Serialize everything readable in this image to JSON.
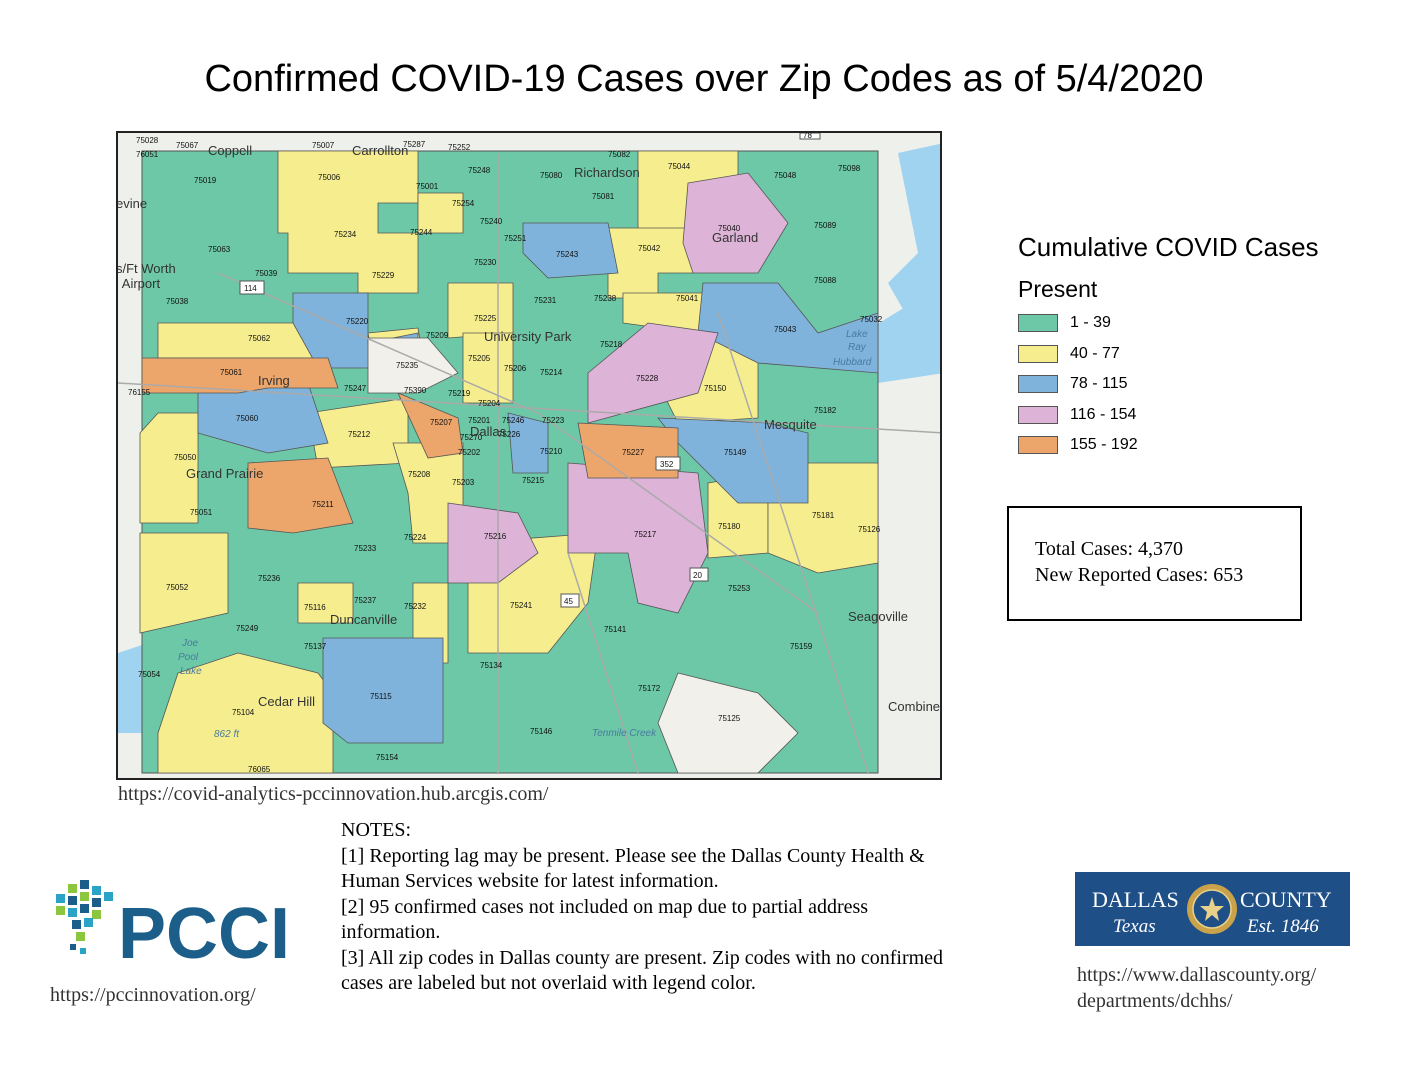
{
  "title": "Confirmed COVID-19 Cases over Zip Codes as of 5/4/2020",
  "legend": {
    "title": "Cumulative COVID Cases",
    "subtitle": "Present",
    "items": [
      {
        "label": "1 - 39",
        "color": "#6cc8a6"
      },
      {
        "label": "40 - 77",
        "color": "#f6ee8e"
      },
      {
        "label": "78 - 115",
        "color": "#7fb3dc"
      },
      {
        "label": "116 - 154",
        "color": "#ddb3d8"
      },
      {
        "label": "155 - 192",
        "color": "#eca66c"
      }
    ]
  },
  "totals": {
    "total_cases": "Total Cases: 4,370",
    "new_cases": "New Reported Cases: 653"
  },
  "map_source_url": "https://covid-analytics-pccinnovation.hub.arcgis.com/",
  "notes": {
    "heading": "NOTES:",
    "lines": [
      "[1] Reporting lag may be present. Please see the Dallas County Health &",
      "Human Services website for latest information.",
      "[2] 95 confirmed cases not included on map due to partial address",
      "information.",
      "[3] All zip codes in Dallas county are present. Zip codes with no confirmed",
      "cases are labeled but not overlaid with legend color."
    ]
  },
  "pcci": {
    "logo_text": "PCCI",
    "url": "https://pccinnovation.org/"
  },
  "dallas_county": {
    "name_left": "DALLAS",
    "name_right": "COUNTY",
    "sub_left": "Texas",
    "sub_right": "Est. 1846",
    "url_line1": "https://www.dallascounty.org/",
    "url_line2": "departments/dchhs/"
  },
  "map": {
    "places": [
      {
        "name": "Coppell"
      },
      {
        "name": "Carrollton"
      },
      {
        "name": "Richardson"
      },
      {
        "name": "Garland"
      },
      {
        "name": "Irving"
      },
      {
        "name": "University Park"
      },
      {
        "name": "Dallas"
      },
      {
        "name": "Mesquite"
      },
      {
        "name": "Grand Prairie"
      },
      {
        "name": "Duncanville"
      },
      {
        "name": "Cedar Hill"
      },
      {
        "name": "Seagoville"
      },
      {
        "name": "Combine"
      },
      {
        "name": "evine"
      },
      {
        "name": "s/Ft Worth"
      },
      {
        "name": "l Airport"
      }
    ],
    "water_labels": [
      "Lake",
      "Ray",
      "Hubbard",
      "Joe",
      "Pool",
      "Lake",
      "Tenmile Creek",
      "862 ft"
    ],
    "highway_shields": [
      "114",
      "352",
      "45",
      "20",
      "78"
    ],
    "zip_labels": [
      "75028",
      "76051",
      "75067",
      "75007",
      "75287",
      "75252",
      "75082",
      "75044",
      "75048",
      "75098",
      "75019",
      "75006",
      "75001",
      "75248",
      "75080",
      "75081",
      "75254",
      "75240",
      "75040",
      "75089",
      "75063",
      "75234",
      "75244",
      "75251",
      "75243",
      "75042",
      "75039",
      "75229",
      "75230",
      "75238",
      "75041",
      "75088",
      "75038",
      "75220",
      "75225",
      "75231",
      "75043",
      "75032",
      "75062",
      "75209",
      "75205",
      "75218",
      "75061",
      "75235",
      "75206",
      "75214",
      "75228",
      "75150",
      "76155",
      "75247",
      "75390",
      "75219",
      "75204",
      "75060",
      "75207",
      "75201",
      "75246",
      "75223",
      "75182",
      "75212",
      "75270",
      "75226",
      "75202",
      "75210",
      "75227",
      "75149",
      "75050",
      "75208",
      "75203",
      "75215",
      "75211",
      "75051",
      "75224",
      "75216",
      "75217",
      "75180",
      "75181",
      "75126",
      "75233",
      "75052",
      "75236",
      "75237",
      "75116",
      "75232",
      "75241",
      "75253",
      "75249",
      "75137",
      "75141",
      "75159",
      "75054",
      "75134",
      "75172",
      "75115",
      "75104",
      "75125",
      "75146",
      "76065",
      "75154"
    ]
  }
}
